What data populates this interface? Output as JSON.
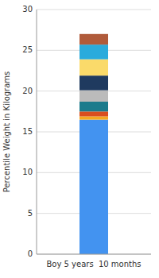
{
  "chart_data": {
    "type": "bar",
    "stacked": true,
    "categories": [
      "Boy 5 years  10 months"
    ],
    "series": [
      {
        "color": "#4393F0",
        "values": [
          16.5
        ]
      },
      {
        "color": "#F5A820",
        "values": [
          0.4
        ]
      },
      {
        "color": "#D94E1F",
        "values": [
          0.6
        ]
      },
      {
        "color": "#1A7B8C",
        "values": [
          1.2
        ]
      },
      {
        "color": "#BBBBBB",
        "values": [
          1.4
        ]
      },
      {
        "color": "#1F3A5F",
        "values": [
          1.8
        ]
      },
      {
        "color": "#FADA6A",
        "values": [
          2.0
        ]
      },
      {
        "color": "#2AABDC",
        "values": [
          1.8
        ]
      },
      {
        "color": "#B05B3B",
        "values": [
          1.3
        ]
      }
    ],
    "ylabel": "Percentile Weight in Kilograms",
    "ylim": [
      0,
      30
    ],
    "yticks": [
      0,
      5,
      10,
      15,
      20,
      25,
      30
    ],
    "grid": true
  }
}
